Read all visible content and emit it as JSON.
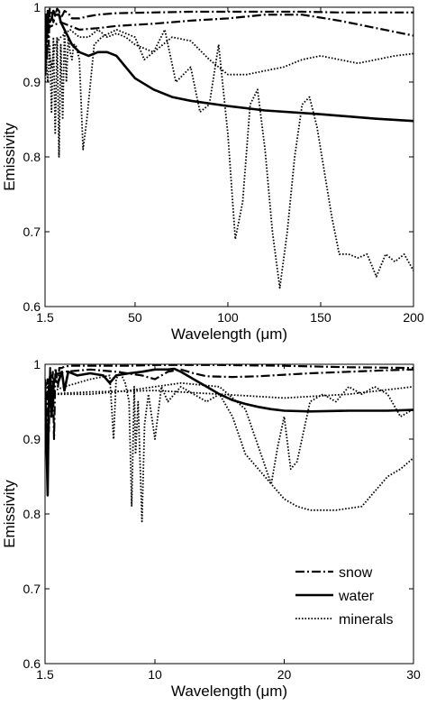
{
  "chart_data": [
    {
      "type": "line",
      "xlabel": "Wavelength (μm)",
      "ylabel": "Emissivity",
      "xlim": [
        1.5,
        200
      ],
      "ylim": [
        0.6,
        1
      ],
      "xticks": [
        1.5,
        50,
        100,
        150,
        200
      ],
      "xtick_labels": [
        "1.5",
        "50",
        "100",
        "150",
        "200"
      ],
      "yticks": [
        0.6,
        0.7,
        0.8,
        0.9,
        1
      ],
      "ytick_labels": [
        "0.6",
        "0.7",
        "0.8",
        "0.9",
        "1"
      ],
      "grid": false,
      "series": [
        {
          "style": "dashdot",
          "x": [
            1.5,
            2,
            2.5,
            3,
            3.5,
            4,
            5,
            6,
            7,
            8,
            9,
            10,
            11,
            12,
            14,
            16,
            20,
            25,
            30,
            40,
            60,
            80,
            100,
            120,
            140,
            160,
            180,
            200
          ],
          "y": [
            0.97,
            0.99,
            0.93,
            0.99,
            0.95,
            0.998,
            0.99,
            0.98,
            0.99,
            0.998,
            0.995,
            0.985,
            0.99,
            0.995,
            0.992,
            0.985,
            0.985,
            0.988,
            0.99,
            0.992,
            0.993,
            0.994,
            0.994,
            0.994,
            0.994,
            0.993,
            0.993,
            0.993
          ]
        },
        {
          "style": "dashdot",
          "x": [
            1.5,
            5,
            10,
            15,
            20,
            30,
            40,
            60,
            80,
            100,
            120,
            140,
            160,
            180,
            200
          ],
          "y": [
            0.97,
            0.975,
            0.98,
            0.975,
            0.97,
            0.972,
            0.975,
            0.978,
            0.982,
            0.985,
            0.99,
            0.99,
            0.982,
            0.972,
            0.962
          ]
        },
        {
          "style": "solid",
          "x": [
            1.5,
            2,
            2.5,
            3,
            3.5,
            4,
            5,
            6,
            7,
            8,
            9,
            10,
            11,
            12,
            13,
            14,
            15,
            16,
            18,
            20,
            25,
            30,
            35,
            40,
            45,
            50,
            60,
            70,
            80,
            100,
            120,
            150,
            180,
            200
          ],
          "y": [
            0.91,
            0.99,
            0.97,
            0.995,
            0.98,
            0.98,
            0.985,
            0.995,
            0.99,
            0.99,
            0.99,
            0.98,
            0.975,
            0.97,
            0.965,
            0.96,
            0.955,
            0.95,
            0.945,
            0.94,
            0.935,
            0.94,
            0.94,
            0.935,
            0.92,
            0.905,
            0.89,
            0.88,
            0.875,
            0.868,
            0.862,
            0.857,
            0.851,
            0.848
          ]
        },
        {
          "style": "dotted",
          "x": [
            1.5,
            3,
            4,
            5,
            6,
            7,
            8,
            9,
            10,
            11,
            12,
            13,
            14,
            15,
            16,
            17,
            18,
            20,
            22,
            24,
            28,
            32,
            40,
            50,
            55,
            60,
            66,
            72,
            80,
            85,
            90,
            95,
            100,
            104,
            108,
            112,
            116,
            120,
            124,
            128,
            132,
            136,
            140,
            144,
            148,
            152,
            156,
            160,
            165,
            170,
            175,
            180,
            185,
            190,
            195,
            200
          ],
          "y": [
            0.95,
            0.9,
            0.95,
            0.86,
            0.96,
            0.83,
            0.96,
            0.8,
            0.95,
            0.85,
            0.97,
            0.9,
            0.96,
            0.94,
            0.93,
            0.95,
            0.95,
            0.93,
            0.81,
            0.85,
            0.95,
            0.96,
            0.97,
            0.96,
            0.93,
            0.94,
            0.97,
            0.9,
            0.92,
            0.86,
            0.87,
            0.95,
            0.83,
            0.69,
            0.74,
            0.87,
            0.89,
            0.81,
            0.7,
            0.625,
            0.7,
            0.8,
            0.87,
            0.88,
            0.84,
            0.78,
            0.72,
            0.67,
            0.67,
            0.665,
            0.67,
            0.64,
            0.67,
            0.66,
            0.67,
            0.648
          ]
        },
        {
          "style": "dotted",
          "x": [
            1.5,
            3,
            5,
            7,
            10,
            15,
            20,
            25,
            30,
            35,
            40,
            45,
            50,
            60,
            70,
            80,
            90,
            100,
            110,
            120,
            130,
            140,
            150,
            160,
            170,
            180,
            190,
            200
          ],
          "y": [
            0.9,
            0.95,
            0.92,
            0.95,
            0.96,
            0.97,
            0.96,
            0.96,
            0.97,
            0.96,
            0.965,
            0.96,
            0.95,
            0.94,
            0.96,
            0.955,
            0.93,
            0.91,
            0.91,
            0.915,
            0.92,
            0.93,
            0.935,
            0.93,
            0.925,
            0.93,
            0.935,
            0.938
          ]
        }
      ]
    },
    {
      "type": "line",
      "xlabel": "Wavelength (μm)",
      "ylabel": "Emissivity",
      "xlim": [
        1.5,
        30
      ],
      "ylim": [
        0.6,
        1
      ],
      "xticks": [
        1.5,
        10,
        20,
        30
      ],
      "xtick_labels": [
        "1.5",
        "10",
        "20",
        "30"
      ],
      "yticks": [
        0.6,
        0.7,
        0.8,
        0.9,
        1
      ],
      "ytick_labels": [
        "0.6",
        "0.7",
        "0.8",
        "0.9",
        "1"
      ],
      "grid": false,
      "legend": "lower-right",
      "series": [
        {
          "name": "snow",
          "style": "dashdot",
          "x": [
            1.5,
            1.6,
            1.7,
            1.8,
            1.9,
            2.0,
            2.1,
            2.2,
            2.3,
            2.5,
            2.6,
            2.8,
            3.0,
            3.5,
            4,
            6,
            8,
            10,
            12,
            15,
            20,
            25,
            30
          ],
          "y": [
            0.96,
            0.88,
            0.98,
            0.91,
            0.995,
            0.95,
            0.99,
            0.9,
            0.995,
            0.97,
            0.995,
            0.995,
            0.997,
            0.998,
            0.998,
            0.998,
            0.998,
            0.999,
            0.999,
            0.999,
            0.998,
            0.996,
            0.995
          ]
        },
        {
          "style": "dashdot",
          "x": [
            1.5,
            2,
            3,
            5,
            7,
            9,
            10,
            11,
            12,
            13,
            14,
            16,
            18,
            20,
            22,
            25,
            28,
            30
          ],
          "y": [
            0.97,
            0.985,
            0.99,
            0.993,
            0.99,
            0.985,
            0.98,
            0.99,
            0.993,
            0.988,
            0.984,
            0.983,
            0.984,
            0.986,
            0.988,
            0.99,
            0.992,
            0.993
          ]
        },
        {
          "name": "water",
          "style": "solid",
          "x": [
            1.5,
            1.7,
            1.8,
            1.9,
            2.0,
            2.2,
            2.5,
            2.8,
            3.0,
            3.3,
            4,
            5,
            6,
            6.5,
            7,
            8,
            9,
            10,
            11,
            11.5,
            12,
            13,
            14,
            15,
            16,
            17,
            18,
            19,
            20,
            22,
            25,
            28,
            30
          ],
          "y": [
            0.98,
            0.825,
            0.97,
            0.985,
            0.93,
            0.98,
            0.975,
            0.99,
            0.965,
            0.99,
            0.985,
            0.988,
            0.985,
            0.975,
            0.985,
            0.988,
            0.99,
            0.993,
            0.993,
            0.994,
            0.99,
            0.98,
            0.97,
            0.96,
            0.952,
            0.947,
            0.943,
            0.94,
            0.938,
            0.937,
            0.938,
            0.938,
            0.939
          ]
        },
        {
          "name": "minerals",
          "style": "dotted",
          "x": [
            1.5,
            3,
            5,
            6.5,
            6.8,
            7,
            7.3,
            7.7,
            8,
            8.2,
            8.4,
            8.5,
            8.7,
            9.0,
            9.2,
            9.5,
            10,
            10.5,
            11,
            12,
            14,
            15,
            16,
            17,
            18,
            19,
            19.5,
            20,
            20.5,
            21,
            22,
            23,
            24,
            25,
            26,
            27,
            28,
            29,
            30
          ],
          "y": [
            0.96,
            0.97,
            0.98,
            0.985,
            0.9,
            0.98,
            0.99,
            0.975,
            0.95,
            0.81,
            0.97,
            0.88,
            0.95,
            0.79,
            0.92,
            0.96,
            0.9,
            0.97,
            0.95,
            0.97,
            0.95,
            0.96,
            0.93,
            0.88,
            0.86,
            0.84,
            0.89,
            0.93,
            0.86,
            0.87,
            0.95,
            0.96,
            0.95,
            0.97,
            0.96,
            0.97,
            0.96,
            0.93,
            0.94
          ]
        },
        {
          "style": "dotted",
          "x": [
            1.5,
            3,
            5,
            8,
            10,
            12,
            15,
            17,
            18,
            19,
            20,
            21,
            22,
            24,
            26,
            27,
            28,
            29,
            30
          ],
          "y": [
            0.96,
            0.96,
            0.96,
            0.965,
            0.97,
            0.975,
            0.97,
            0.94,
            0.89,
            0.84,
            0.82,
            0.81,
            0.805,
            0.805,
            0.81,
            0.83,
            0.85,
            0.86,
            0.875
          ]
        },
        {
          "style": "dotted",
          "x": [
            1.5,
            5,
            10,
            15,
            20,
            25,
            30
          ],
          "y": [
            0.96,
            0.963,
            0.965,
            0.96,
            0.955,
            0.96,
            0.97
          ]
        }
      ]
    }
  ],
  "legend_items": [
    {
      "label": "snow",
      "style": "dashdot"
    },
    {
      "label": "water",
      "style": "solid"
    },
    {
      "label": "minerals",
      "style": "dotted"
    }
  ]
}
